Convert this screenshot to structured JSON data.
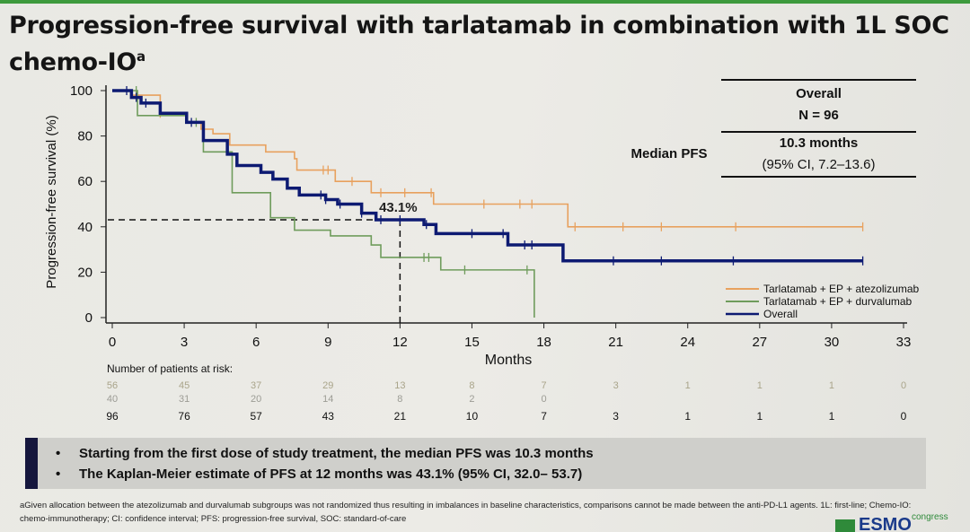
{
  "title": "Progression-free survival with tarlatamab in combination with 1L SOC chemo-IO",
  "title_superscript": "a",
  "median_table": {
    "column_header": "Overall",
    "n_label": "N = 96",
    "row_label": "Median PFS",
    "median_value": "10.3 months",
    "ci": "(95% CI, 7.2–13.6)"
  },
  "chart_data": {
    "type": "line",
    "subtype": "kaplan-meier step",
    "xlabel": "Months",
    "ylabel": "Progression-free survival (%)",
    "xlim": [
      0,
      33
    ],
    "ylim": [
      0,
      100
    ],
    "xticks": [
      "0",
      "3",
      "6",
      "9",
      "12",
      "15",
      "18",
      "21",
      "24",
      "27",
      "30",
      "33"
    ],
    "yticks": [
      "0",
      "20",
      "40",
      "60",
      "80",
      "100"
    ],
    "grid": false,
    "legend_position": "bottom-right",
    "annotation": {
      "label": "43.1%",
      "x": 12,
      "y": 43.1
    },
    "series": [
      {
        "name": "Tarlatamab + EP + atezolizumab",
        "color": "#e8a15e",
        "steps": [
          [
            0,
            100
          ],
          [
            0.8,
            98
          ],
          [
            2.0,
            90
          ],
          [
            3.1,
            86
          ],
          [
            3.7,
            83
          ],
          [
            4.2,
            81
          ],
          [
            4.9,
            76
          ],
          [
            6.4,
            73
          ],
          [
            7.6,
            70
          ],
          [
            7.7,
            65
          ],
          [
            9.3,
            60
          ],
          [
            10.8,
            55
          ],
          [
            13.4,
            50
          ],
          [
            19.0,
            40
          ],
          [
            31.3,
            40
          ]
        ],
        "censored": [
          1.0,
          2.0,
          8.8,
          9.0,
          10.0,
          11.2,
          12.2,
          13.3,
          15.5,
          17.0,
          17.5,
          19.3,
          21.3,
          22.9,
          26.0,
          31.3
        ]
      },
      {
        "name": "Tarlatamab + EP + durvalumab",
        "color": "#6f9c5c",
        "steps": [
          [
            0,
            100
          ],
          [
            1.05,
            89
          ],
          [
            3.1,
            86
          ],
          [
            3.8,
            73
          ],
          [
            5.0,
            55
          ],
          [
            6.6,
            44
          ],
          [
            7.6,
            38.5
          ],
          [
            9.1,
            36
          ],
          [
            10.8,
            32
          ],
          [
            11.2,
            26.5
          ],
          [
            13.7,
            21
          ],
          [
            17.6,
            21
          ],
          [
            17.6,
            0
          ]
        ],
        "censored": [
          1.0,
          3.5,
          13.0,
          13.2,
          14.7,
          17.3
        ]
      },
      {
        "name": "Overall",
        "color": "#0d1a72",
        "steps": [
          [
            0,
            100
          ],
          [
            0.8,
            97
          ],
          [
            1.2,
            94.5
          ],
          [
            2.0,
            90
          ],
          [
            3.1,
            86
          ],
          [
            3.8,
            78
          ],
          [
            4.8,
            72
          ],
          [
            5.2,
            67
          ],
          [
            6.2,
            64
          ],
          [
            6.7,
            61
          ],
          [
            7.3,
            57
          ],
          [
            7.8,
            54
          ],
          [
            8.9,
            52
          ],
          [
            9.4,
            50
          ],
          [
            10.4,
            46
          ],
          [
            11.0,
            43.1
          ],
          [
            13.0,
            41
          ],
          [
            13.5,
            37
          ],
          [
            16.5,
            32
          ],
          [
            18.8,
            25
          ],
          [
            31.3,
            25
          ]
        ],
        "censored": [
          0.6,
          1.0,
          1.4,
          3.3,
          8.7,
          8.9,
          9.5,
          10.4,
          11.2,
          12.0,
          13.1,
          15.0,
          16.3,
          17.2,
          17.5,
          20.9,
          22.9,
          25.9,
          31.3
        ]
      }
    ],
    "risk_table": {
      "title": "Number of patients at risk:",
      "rows": [
        {
          "series": "Tarlatamab + EP + atezolizumab",
          "color": "#a9a48a",
          "values": [
            "56",
            "45",
            "37",
            "29",
            "13",
            "8",
            "7",
            "3",
            "1",
            "1",
            "1",
            "0"
          ]
        },
        {
          "series": "Tarlatamab + EP + durvalumab",
          "color": "#9c9c95",
          "values": [
            "40",
            "31",
            "20",
            "14",
            "8",
            "2",
            "0"
          ]
        },
        {
          "series": "Overall",
          "color": "#111111",
          "values": [
            "96",
            "76",
            "57",
            "43",
            "21",
            "10",
            "7",
            "3",
            "1",
            "1",
            "1",
            "0"
          ]
        }
      ]
    }
  },
  "summary": {
    "bullets": [
      "Starting from the first dose of study treatment, the median PFS was 10.3 months",
      "The Kaplan-Meier estimate of PFS at 12 months was 43.1% (95% CI, 32.0– 53.7)"
    ]
  },
  "footnote": "aGiven allocation between the atezolizumab and durvalumab subgroups was not randomized thus resulting in imbalances in baseline characteristics, comparisons cannot be made between the anti-PD-L1 agents. 1L: first-line; Chemo-IO: chemo-immunotherapy; CI: confidence interval; PFS: progression-free survival, SOC: standard-of-care",
  "logo": {
    "text": "ESMO",
    "suffix": "congress",
    "color": "#2f8a3a"
  }
}
